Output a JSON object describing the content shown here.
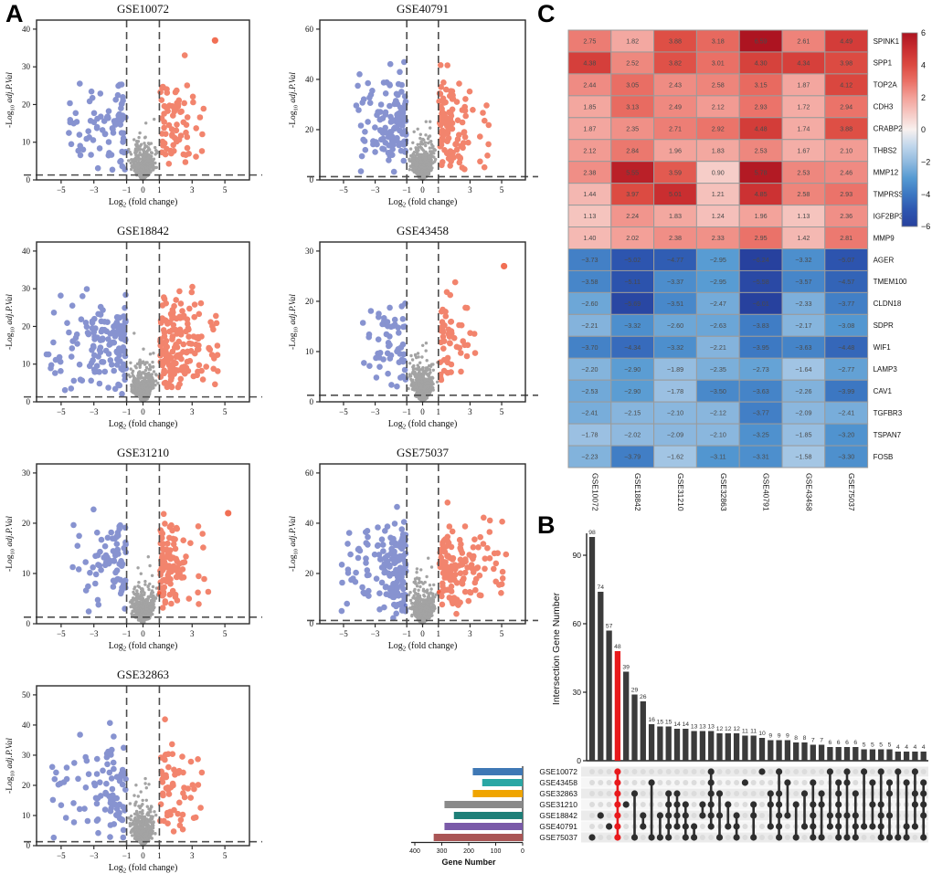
{
  "panels": {
    "a_label": "A",
    "b_label": "B",
    "c_label": "C"
  },
  "colors": {
    "volcano_up": "#ee5636",
    "volcano_down": "#5a6abf",
    "volcano_ns": "#7d7d7d",
    "upset_bar": "#3b3b3b",
    "upset_highlight": "#e8191c",
    "heat_max_red": "#ad1421",
    "heat_min_blue": "#27419e"
  },
  "chart_data": [
    {
      "type": "scatter",
      "subtype": "volcano-panel",
      "panel": "A",
      "xlabel": "Log2 (fold change)",
      "ylabel": "-Log10 adj.P.Val",
      "xticks": [
        -5,
        -3,
        -1,
        0,
        1,
        3,
        5
      ],
      "xlim": [
        -6.5,
        6.5
      ],
      "fc_cutoff": 1,
      "pval_cutoff_line": 1.3,
      "plots": [
        {
          "title": "GSE10072",
          "yticks": [
            0,
            10,
            20,
            30,
            40
          ],
          "seed": 11,
          "n_center": 520,
          "n_blue": 85,
          "n_red": 75,
          "blue_xmax": 4.6,
          "red_xmax": 3.7,
          "outliers": [
            {
              "x": 4.4,
              "y": 37
            }
          ]
        },
        {
          "title": "GSE40791",
          "yticks": [
            0,
            20,
            40,
            60
          ],
          "seed": 22,
          "n_center": 520,
          "n_blue": 130,
          "n_red": 115,
          "blue_xmax": 4.2,
          "red_xmax": 4.4,
          "outliers": []
        },
        {
          "title": "GSE18842",
          "yticks": [
            0,
            10,
            20,
            30,
            40
          ],
          "seed": 33,
          "n_center": 520,
          "n_blue": 150,
          "n_red": 170,
          "blue_xmax": 6.0,
          "red_xmax": 4.6,
          "outliers": []
        },
        {
          "title": "GSE43458",
          "yticks": [
            0,
            10,
            20,
            30
          ],
          "seed": 44,
          "n_center": 520,
          "n_blue": 60,
          "n_red": 55,
          "blue_xmax": 4.0,
          "red_xmax": 3.4,
          "outliers": [
            {
              "x": 5.15,
              "y": 27
            }
          ]
        },
        {
          "title": "GSE31210",
          "yticks": [
            0,
            10,
            20,
            30
          ],
          "seed": 55,
          "n_center": 520,
          "n_blue": 80,
          "n_red": 105,
          "blue_xmax": 4.3,
          "red_xmax": 4.0,
          "outliers": [
            {
              "x": 5.2,
              "y": 22
            }
          ]
        },
        {
          "title": "GSE75037",
          "yticks": [
            0,
            20,
            40,
            60
          ],
          "seed": 66,
          "n_center": 520,
          "n_blue": 170,
          "n_red": 140,
          "blue_xmax": 5.3,
          "red_xmax": 5.3,
          "outliers": []
        },
        {
          "title": "GSE32863",
          "yticks": [
            0,
            10,
            20,
            30,
            40,
            50
          ],
          "seed": 77,
          "n_center": 520,
          "n_blue": 95,
          "n_red": 60,
          "blue_xmax": 5.6,
          "red_xmax": 3.6,
          "outliers": []
        }
      ]
    },
    {
      "type": "heatmap",
      "panel": "C",
      "rows": [
        "SPINK1",
        "SPP1",
        "TOP2A",
        "CDH3",
        "CRABP2",
        "THBS2",
        "MMP12",
        "TMPRSS4",
        "IGF2BP3",
        "MMP9",
        "AGER",
        "TMEM100",
        "CLDN18",
        "SDPR",
        "WIF1",
        "LAMP3",
        "CAV1",
        "TGFBR3",
        "TSPAN7",
        "FOSB"
      ],
      "columns": [
        "GSE10072",
        "GSE18842",
        "GSE31210",
        "GSE32863",
        "GSE40791",
        "GSE43458",
        "GSE75037"
      ],
      "values": [
        [
          2.75,
          1.82,
          3.88,
          3.18,
          6.59,
          2.61,
          4.49
        ],
        [
          4.38,
          2.52,
          3.82,
          3.01,
          4.3,
          4.34,
          3.98
        ],
        [
          2.44,
          3.05,
          2.43,
          2.58,
          3.15,
          1.87,
          4.12
        ],
        [
          1.85,
          3.13,
          2.49,
          2.12,
          2.93,
          1.72,
          2.94
        ],
        [
          1.87,
          2.35,
          2.71,
          2.92,
          4.48,
          1.74,
          3.88
        ],
        [
          2.12,
          2.84,
          1.96,
          1.83,
          2.53,
          1.67,
          2.1
        ],
        [
          2.38,
          5.55,
          3.59,
          0.9,
          5.78,
          2.53,
          2.46
        ],
        [
          1.44,
          3.97,
          5.01,
          1.21,
          4.85,
          2.58,
          2.93
        ],
        [
          1.13,
          2.24,
          1.83,
          1.24,
          1.96,
          1.13,
          2.36
        ],
        [
          1.4,
          2.02,
          2.38,
          2.33,
          2.95,
          1.42,
          2.81
        ],
        [
          -3.73,
          -5.02,
          -4.77,
          -2.95,
          -6.24,
          -3.32,
          -5.07
        ],
        [
          -3.58,
          -5.11,
          -3.37,
          -2.95,
          -5.58,
          -3.57,
          -4.57
        ],
        [
          -2.6,
          -5.69,
          -3.51,
          -2.47,
          -6.01,
          -2.33,
          -3.77
        ],
        [
          -2.21,
          -3.32,
          -2.6,
          -2.63,
          -3.83,
          -2.17,
          -3.08
        ],
        [
          -3.7,
          -4.34,
          -3.32,
          -2.21,
          -3.95,
          -3.63,
          -4.48
        ],
        [
          -2.2,
          -2.9,
          -1.89,
          -2.35,
          -2.73,
          -1.64,
          -2.77
        ],
        [
          -2.53,
          -2.9,
          -1.78,
          -3.5,
          -3.63,
          -2.26,
          -3.99
        ],
        [
          -2.41,
          -2.15,
          -2.1,
          -2.12,
          -3.77,
          -2.09,
          -2.41
        ],
        [
          -1.78,
          -2.02,
          -2.09,
          -2.1,
          -3.25,
          -1.85,
          -3.2
        ],
        [
          -2.23,
          -3.79,
          -1.62,
          -3.11,
          -3.31,
          -1.58,
          -3.3
        ]
      ],
      "colorbar_ticks": [
        6,
        4,
        2,
        0,
        -2,
        -4,
        -6
      ],
      "vmin": -6,
      "vmax": 6
    },
    {
      "type": "bar",
      "subtype": "upset",
      "panel": "B",
      "ylabel": "Intersection Gene Number",
      "yticks": [
        0,
        30,
        60,
        90
      ],
      "bar_values": [
        98,
        74,
        57,
        48,
        39,
        29,
        26,
        16,
        15,
        15,
        14,
        14,
        13,
        13,
        13,
        12,
        12,
        12,
        11,
        11,
        10,
        9,
        9,
        9,
        8,
        8,
        7,
        7,
        6,
        6,
        6,
        6,
        5,
        5,
        5,
        5,
        4,
        4,
        4,
        4
      ],
      "highlight_index": 3,
      "sets": [
        {
          "name": "GSE10072",
          "size": 185,
          "color": "#3f78b5"
        },
        {
          "name": "GSE43458",
          "size": 150,
          "color": "#2aa7a4"
        },
        {
          "name": "GSE32863",
          "size": 185,
          "color": "#f0a500"
        },
        {
          "name": "GSE31210",
          "size": 290,
          "color": "#8a8a8a"
        },
        {
          "name": "GSE18842",
          "size": 255,
          "color": "#1e7f78"
        },
        {
          "name": "GSE40791",
          "size": 290,
          "color": "#7a5aa8"
        },
        {
          "name": "GSE75037",
          "size": 330,
          "color": "#aa5555"
        }
      ],
      "set_axis_ticks": [
        400,
        300,
        200,
        100,
        0
      ],
      "set_axis_label": "Gene Number",
      "memberships": [
        [
          6
        ],
        [
          4
        ],
        [
          5
        ],
        [
          0,
          1,
          2,
          3,
          4,
          5,
          6
        ],
        [
          3
        ],
        [
          2,
          6
        ],
        [
          4,
          5
        ],
        [
          1,
          6
        ],
        [
          4,
          6
        ],
        [
          2,
          3,
          4,
          5,
          6
        ],
        [
          2,
          3,
          4,
          5
        ],
        [
          3,
          4,
          5,
          6
        ],
        [
          5,
          6
        ],
        [
          3,
          4
        ],
        [
          0,
          1,
          2,
          3,
          4,
          5
        ],
        [
          2,
          4,
          6
        ],
        [
          3,
          5
        ],
        [
          4,
          5,
          6
        ],
        [
          1
        ],
        [
          3,
          4,
          6
        ],
        [
          0
        ],
        [
          2,
          3,
          5
        ],
        [
          0,
          2,
          3,
          4,
          5,
          6
        ],
        [
          1,
          4
        ],
        [
          3,
          6
        ],
        [
          2,
          5
        ],
        [
          1,
          3,
          4,
          5,
          6
        ],
        [
          2,
          3,
          6
        ],
        [
          0,
          4,
          5
        ],
        [
          1,
          2,
          3,
          4,
          5,
          6
        ],
        [
          0,
          1,
          4,
          6
        ],
        [
          2,
          4,
          5,
          6
        ],
        [
          0,
          5
        ],
        [
          1,
          3,
          5
        ],
        [
          0,
          3,
          4,
          5,
          6
        ],
        [
          1,
          2,
          4,
          6
        ],
        [
          0,
          6
        ],
        [
          1,
          5,
          6
        ],
        [
          0,
          2,
          3,
          5
        ],
        [
          1,
          2,
          3,
          4,
          6
        ]
      ]
    }
  ]
}
